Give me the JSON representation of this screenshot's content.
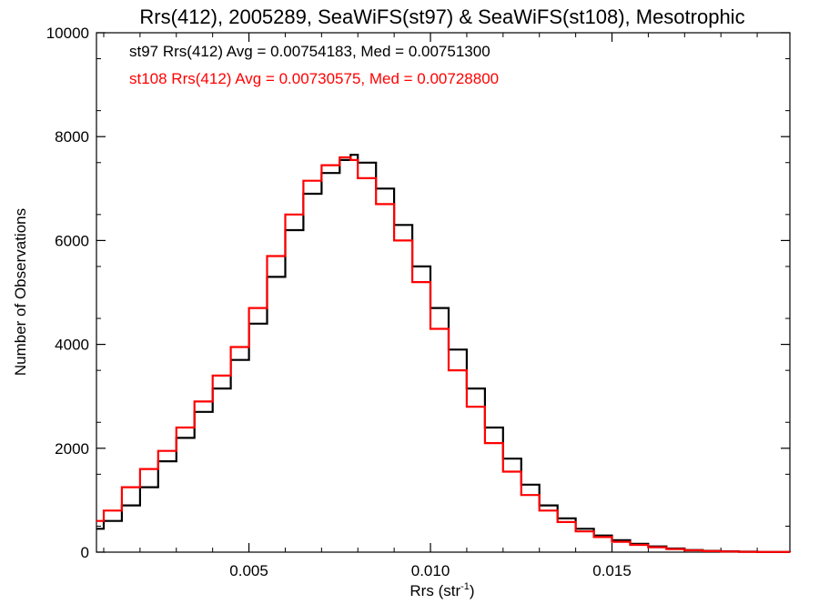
{
  "chart_data": {
    "type": "line",
    "title": "Rrs(412), 2005289, SeaWiFS(st97) & SeaWiFS(st108), Mesotrophic",
    "xlabel": "Rrs (str",
    "xlabel_sup": "-1",
    "xlabel_tail": ")",
    "ylabel": "Number of Observations",
    "xlim": [
      0.0008,
      0.0199
    ],
    "ylim": [
      0,
      10000
    ],
    "xticks": [
      0.005,
      0.01,
      0.015
    ],
    "xtick_labels": [
      "0.005",
      "0.010",
      "0.015"
    ],
    "yticks": [
      0,
      2000,
      4000,
      6000,
      8000,
      10000
    ],
    "ytick_labels": [
      "0",
      "2000",
      "4000",
      "6000",
      "8000",
      "10000"
    ],
    "grid": false,
    "step": true,
    "series": [
      {
        "name": "st97",
        "color": "#000000",
        "x": [
          0.0008,
          0.001,
          0.0015,
          0.002,
          0.0025,
          0.003,
          0.0035,
          0.004,
          0.0045,
          0.005,
          0.0055,
          0.006,
          0.0065,
          0.007,
          0.0075,
          0.0078,
          0.008,
          0.0085,
          0.009,
          0.0095,
          0.01,
          0.0105,
          0.011,
          0.0115,
          0.012,
          0.0125,
          0.013,
          0.0135,
          0.014,
          0.0145,
          0.015,
          0.0155,
          0.016,
          0.0165,
          0.017,
          0.0175,
          0.018,
          0.0185,
          0.019,
          0.0199
        ],
        "y": [
          450,
          600,
          900,
          1250,
          1750,
          2200,
          2700,
          3150,
          3700,
          4400,
          5300,
          6200,
          6900,
          7300,
          7550,
          7650,
          7500,
          7000,
          6300,
          5500,
          4700,
          3900,
          3150,
          2400,
          1800,
          1300,
          900,
          650,
          450,
          320,
          230,
          160,
          110,
          70,
          40,
          25,
          15,
          8,
          4,
          2
        ]
      },
      {
        "name": "st108",
        "color": "#ff0000",
        "x": [
          0.0008,
          0.001,
          0.0015,
          0.002,
          0.0025,
          0.003,
          0.0035,
          0.004,
          0.0045,
          0.005,
          0.0055,
          0.006,
          0.0065,
          0.007,
          0.0075,
          0.0078,
          0.008,
          0.0085,
          0.009,
          0.0095,
          0.01,
          0.0105,
          0.011,
          0.0115,
          0.012,
          0.0125,
          0.013,
          0.0135,
          0.014,
          0.0145,
          0.015,
          0.0155,
          0.016,
          0.0165,
          0.017,
          0.0175,
          0.018,
          0.0185,
          0.019,
          0.0199
        ],
        "y": [
          600,
          800,
          1250,
          1600,
          1950,
          2400,
          2900,
          3400,
          3950,
          4700,
          5700,
          6500,
          7150,
          7450,
          7600,
          7550,
          7200,
          6700,
          6000,
          5200,
          4300,
          3500,
          2800,
          2100,
          1550,
          1100,
          800,
          580,
          400,
          290,
          200,
          140,
          95,
          60,
          35,
          20,
          12,
          6,
          3,
          1
        ]
      }
    ],
    "annotations": [
      {
        "text": "st97 Rrs(412) Avg = 0.00754183, Med = 0.00751300",
        "color": "#000000"
      },
      {
        "text": "st108 Rrs(412) Avg = 0.00730575, Med = 0.00728800",
        "color": "#ff0000"
      }
    ]
  }
}
